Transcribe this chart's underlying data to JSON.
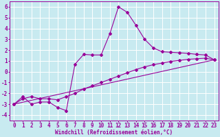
{
  "xlabel": "Windchill (Refroidissement éolien,°C)",
  "background_color": "#c8eaf0",
  "grid_color": "#ffffff",
  "line_color": "#990099",
  "xlim": [
    -0.5,
    23.5
  ],
  "ylim": [
    -4.5,
    6.5
  ],
  "xtick_vals": [
    0,
    1,
    2,
    3,
    4,
    5,
    6,
    7,
    8,
    9,
    10,
    11,
    12,
    13,
    14,
    15,
    16,
    17,
    18,
    19,
    20,
    21,
    22,
    23
  ],
  "ytick_vals": [
    -4,
    -3,
    -2,
    -1,
    0,
    1,
    2,
    3,
    4,
    5,
    6
  ],
  "series1_x": [
    0,
    1,
    2,
    3,
    4,
    5,
    6,
    7,
    8,
    9,
    10,
    11,
    12,
    13,
    14,
    15,
    16,
    17,
    18,
    19,
    20,
    21,
    22,
    23
  ],
  "series1_y": [
    -3.0,
    -2.3,
    -3.0,
    -2.8,
    -2.8,
    -3.3,
    -3.6,
    0.7,
    1.6,
    1.55,
    1.55,
    3.5,
    6.0,
    5.5,
    4.3,
    3.0,
    2.2,
    1.85,
    1.8,
    1.75,
    1.7,
    1.6,
    1.55,
    1.1
  ],
  "series2_x": [
    0,
    23
  ],
  "series2_y": [
    -3.0,
    1.1
  ],
  "series3_x": [
    0,
    1,
    2,
    3,
    4,
    5,
    6,
    7,
    8,
    9,
    10,
    11,
    12,
    13,
    14,
    15,
    16,
    17,
    18,
    19,
    20,
    21,
    22,
    23
  ],
  "series3_y": [
    -3.0,
    -2.5,
    -2.3,
    -2.5,
    -2.5,
    -2.6,
    -2.3,
    -2.0,
    -1.6,
    -1.3,
    -1.0,
    -0.7,
    -0.4,
    -0.1,
    0.2,
    0.45,
    0.65,
    0.8,
    0.95,
    1.05,
    1.15,
    1.2,
    1.25,
    1.1
  ],
  "marker": "D",
  "marker_size": 2.0,
  "line_width": 0.8,
  "tick_fontsize": 5.5,
  "xlabel_fontsize": 5.5
}
